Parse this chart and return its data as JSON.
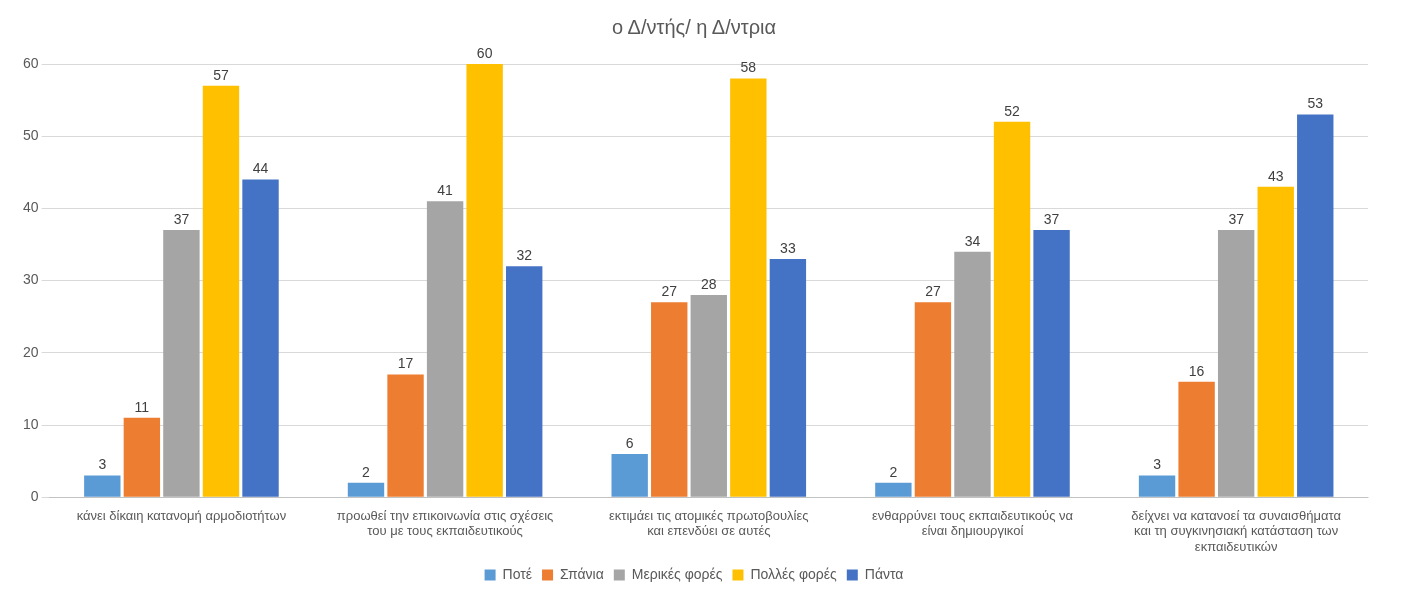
{
  "chart_data": {
    "type": "bar",
    "title": "ο Δ/ντής/ η Δ/ντρια",
    "categories": [
      "κάνει δίκαιη κατανομή αρμοδιοτήτων",
      "προωθεί την επικοινωνία στις σχέσεις του με τους εκπαιδευτικούς",
      "εκτιμάει τις ατομικές πρωτοβουλίες και επενδύει σε αυτές",
      "ενθαρρύνει τους εκπαιδευτικούς να είναι δημιουργικοί",
      "δείχνει να κατανοεί τα συναισθήματα και τη συγκινησιακή κατάσταση των εκπαιδευτικών"
    ],
    "series": [
      {
        "name": "Ποτέ",
        "color": "#5b9bd5",
        "values": [
          3,
          2,
          6,
          2,
          3
        ]
      },
      {
        "name": "Σπάνια",
        "color": "#ed7d31",
        "values": [
          11,
          17,
          27,
          27,
          16
        ]
      },
      {
        "name": "Μερικές φορές",
        "color": "#a5a5a5",
        "values": [
          37,
          41,
          28,
          34,
          37
        ]
      },
      {
        "name": "Πολλές φορές",
        "color": "#ffc000",
        "values": [
          57,
          60,
          58,
          52,
          43
        ]
      },
      {
        "name": "Πάντα",
        "color": "#4472c4",
        "values": [
          44,
          32,
          33,
          37,
          53
        ]
      }
    ],
    "ylim": [
      0,
      60
    ],
    "yticks": [
      0,
      10,
      20,
      30,
      40,
      50,
      60
    ],
    "grid": "y",
    "legend": "bottom",
    "data_labels": true
  }
}
